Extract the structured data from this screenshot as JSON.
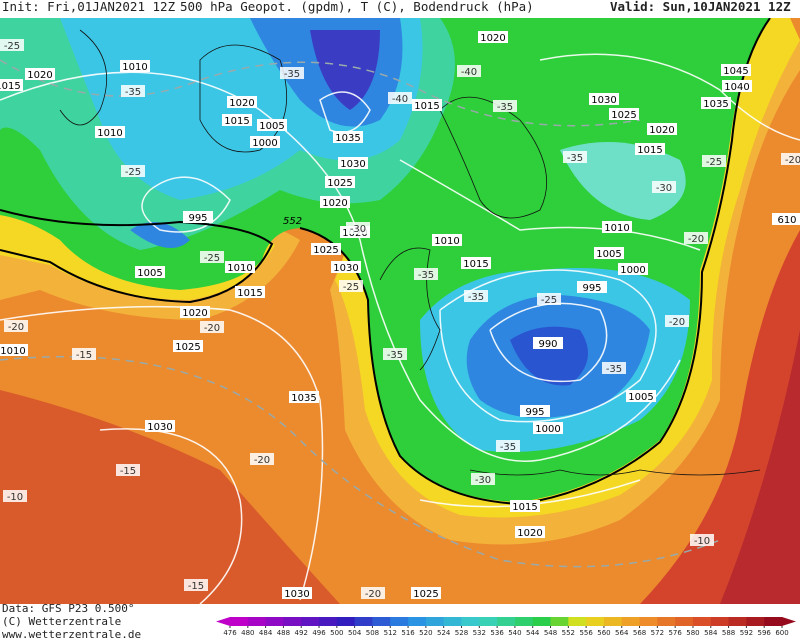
{
  "header": {
    "init": "Init: Fri,01JAN2021 12Z",
    "title": "500 hPa Geopot. (gpdm), T (C), Bodendruck (hPa)",
    "valid": "Valid: Sun,10JAN2021 12Z"
  },
  "map": {
    "pressure_labels": [
      "1020",
      "1010",
      "1020",
      "1015",
      "1005",
      "1010",
      "1000",
      "1035",
      "1030",
      "1025",
      "1020",
      "995",
      "1005",
      "1010",
      "1015",
      "1025",
      "1030",
      "1020",
      "1010",
      "1015",
      "1020",
      "1015",
      "1045",
      "1040",
      "1035",
      "1030",
      "1025",
      "1020",
      "1015",
      "1010",
      "1005",
      "1000",
      "995",
      "990",
      "995",
      "1000",
      "1005",
      "1015",
      "1020",
      "1020",
      "1025",
      "1035",
      "1030",
      "1030",
      "1025",
      "1010",
      "1015",
      "610"
    ],
    "temperature_labels": [
      "-25",
      "-35",
      "-35",
      "-40",
      "-40",
      "-35",
      "-25",
      "-35",
      "-25",
      "-30",
      "-20",
      "-30",
      "-20",
      "-25",
      "-35",
      "-25",
      "-35",
      "-25",
      "-20",
      "-20",
      "-20",
      "-15",
      "-35",
      "-35",
      "-35",
      "-30",
      "-15",
      "-20",
      "-10",
      "-10",
      "-15",
      "-20"
    ],
    "contour_label": "552"
  },
  "footer": {
    "data": "Data: GFS P23 0.500°",
    "copyright": "(C) Wetterzentrale",
    "url": "www.wetterzentrale.de"
  },
  "colorbar": {
    "ticks": [
      476,
      480,
      484,
      488,
      492,
      496,
      500,
      504,
      508,
      512,
      516,
      520,
      524,
      528,
      532,
      536,
      540,
      544,
      548,
      552,
      556,
      560,
      564,
      568,
      572,
      576,
      580,
      584,
      588,
      592,
      596,
      600
    ]
  }
}
